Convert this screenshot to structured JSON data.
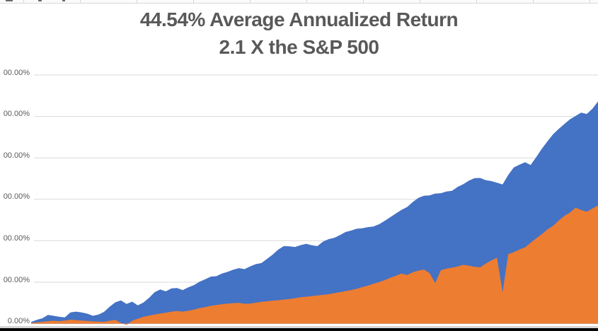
{
  "chart": {
    "title_line1": "44.54% Average Annualized Return",
    "title_line2": "2.1 X the S&P 500",
    "title_color": "#595959",
    "gridline_color": "#d9d9d9",
    "axis_label_color": "#595959",
    "background_color": "#ffffff"
  },
  "chart_data": {
    "type": "area",
    "title": "44.54% Average Annualized Return",
    "subtitle": "2.1 X the S&P 500",
    "legend": "none",
    "x_axis": {
      "labels_visible": false
    },
    "y_axis": {
      "tick_labels_visible_top_to_bottom": [
        "00.00%",
        "00.00%",
        "00.00%",
        "00.00%",
        "00.00%",
        "00.00%",
        "0.00%"
      ],
      "gridline_values_pct_top_to_bottom": [
        1200,
        1000,
        800,
        600,
        400,
        200,
        0
      ],
      "units": "percent, labels cut off at left edge; gridlines every 200%"
    },
    "series": [
      {
        "name": "series-blue",
        "color": "#4472C4",
        "values_pct": [
          8,
          18,
          26,
          42,
          38,
          33,
          30,
          54,
          58,
          54,
          48,
          38,
          44,
          57,
          82,
          103,
          112,
          95,
          106,
          88,
          102,
          124,
          152,
          165,
          156,
          170,
          172,
          162,
          175,
          186,
          202,
          214,
          227,
          229,
          242,
          250,
          260,
          268,
          263,
          276,
          287,
          292,
          312,
          332,
          357,
          374,
          373,
          370,
          379,
          385,
          378,
          374,
          396,
          408,
          414,
          427,
          442,
          449,
          458,
          460,
          466,
          469,
          480,
          496,
          514,
          532,
          549,
          563,
          587,
          607,
          617,
          619,
          628,
          629,
          638,
          641,
          660,
          673,
          690,
          702,
          703,
          692,
          688,
          680,
          672,
          717,
          754,
          767,
          779,
          766,
          804,
          844,
          880,
          914,
          940,
          963,
          986,
          1002,
          1018,
          1012,
          1037,
          1072
        ]
      },
      {
        "name": "series-orange",
        "color": "#ED7D31",
        "values_pct": [
          3,
          6,
          9,
          12,
          14,
          12,
          15,
          19,
          17,
          15,
          13,
          11,
          10,
          9,
          14,
          18,
          3,
          -6,
          14,
          24,
          33,
          39,
          44,
          49,
          53,
          58,
          61,
          58,
          62,
          68,
          75,
          80,
          86,
          90,
          94,
          97,
          99,
          100,
          96,
          97,
          101,
          105,
          108,
          111,
          113,
          116,
          119,
          123,
          127,
          130,
          133,
          136,
          139,
          142,
          147,
          152,
          157,
          162,
          168,
          176,
          184,
          192,
          201,
          210,
          222,
          231,
          242,
          235,
          248,
          256,
          261,
          243,
          196,
          258,
          266,
          270,
          276,
          284,
          280,
          274,
          272,
          290,
          305,
          318,
          152,
          335,
          345,
          358,
          368,
          390,
          412,
          432,
          455,
          472,
          498,
          520,
          536,
          560,
          548,
          540,
          556,
          570
        ]
      }
    ]
  }
}
